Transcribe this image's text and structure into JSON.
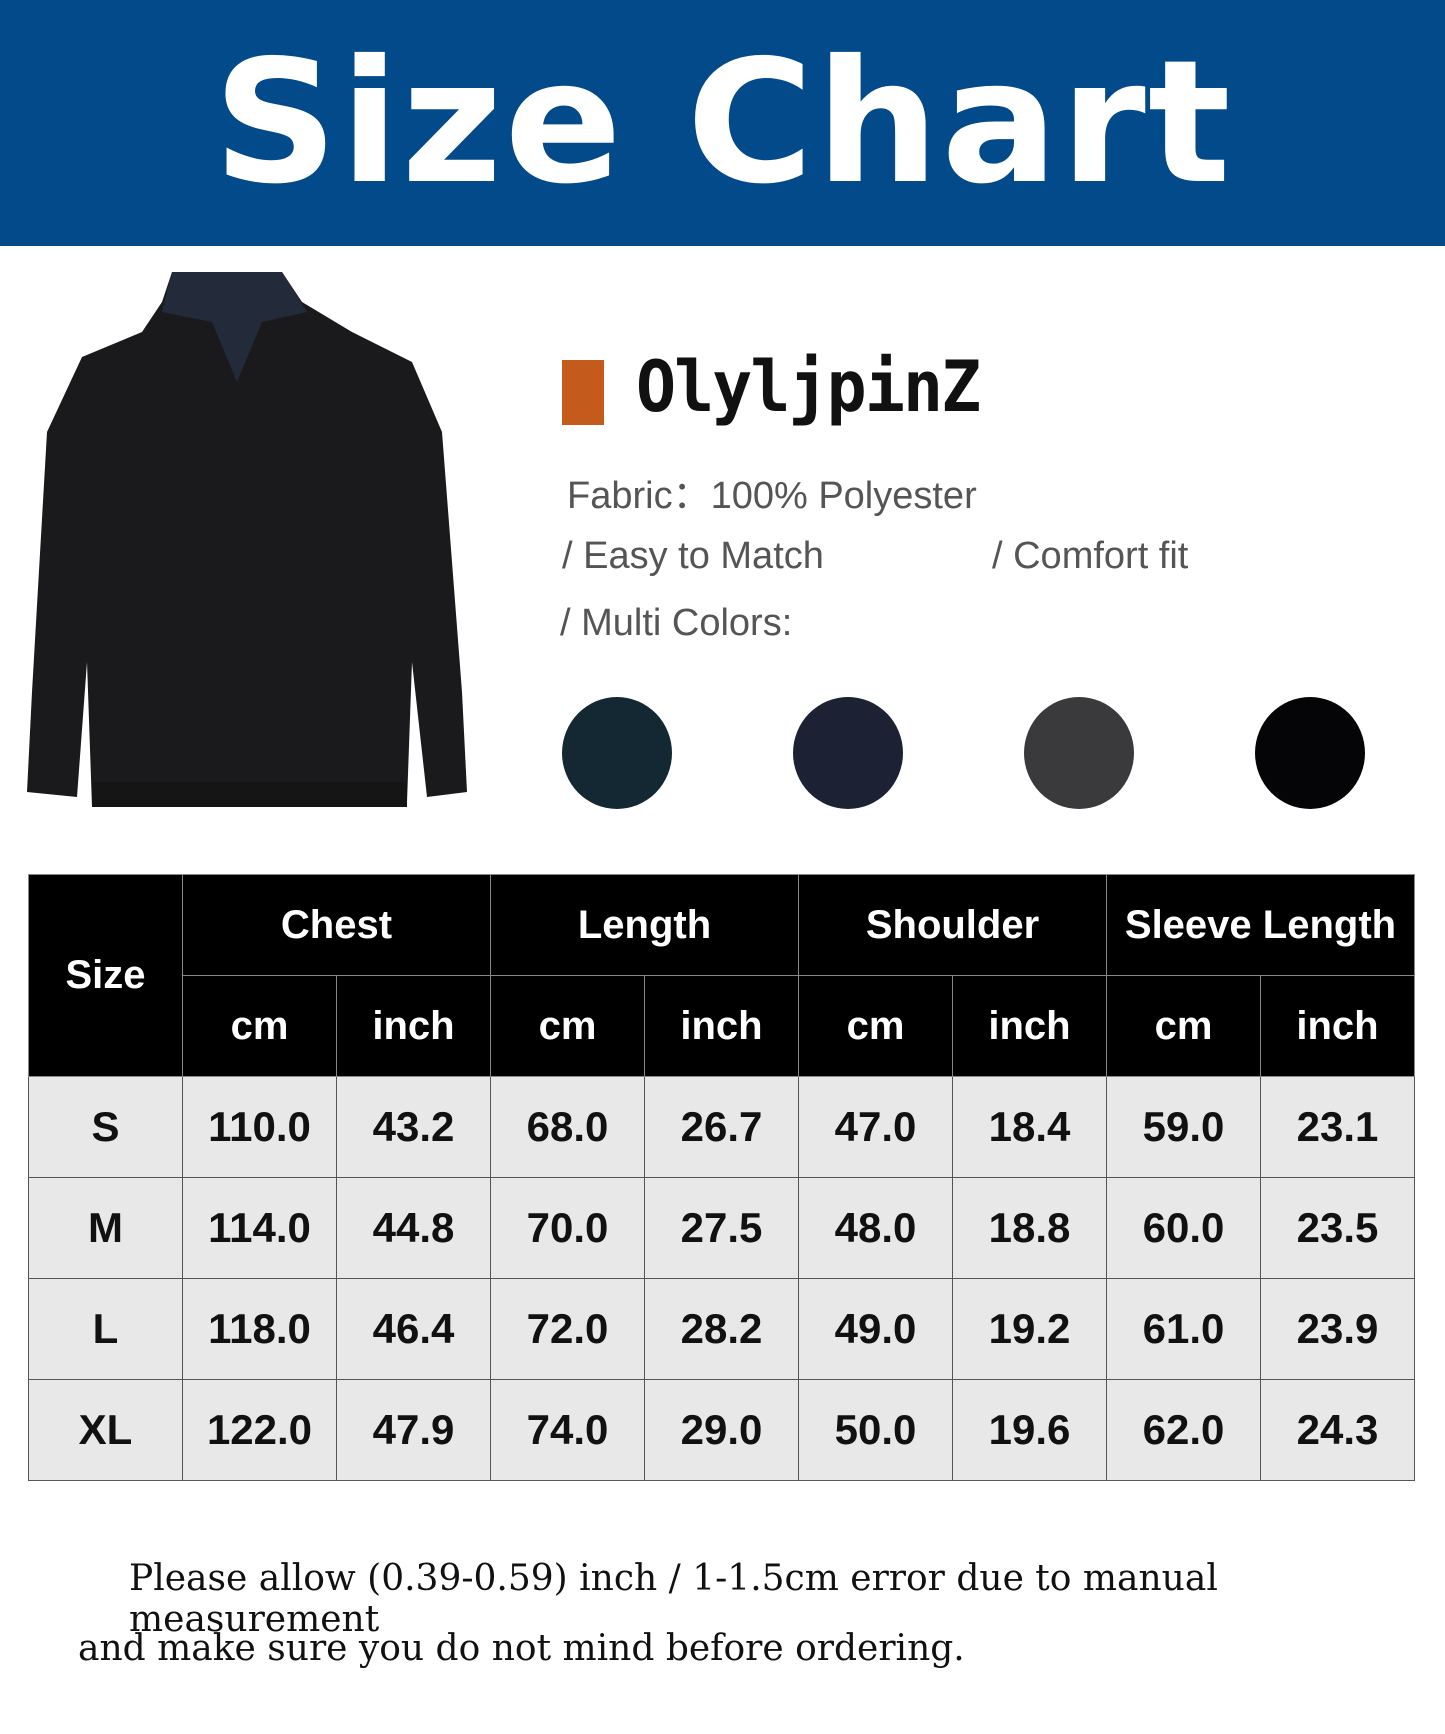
{
  "title": "Size Chart",
  "brand": {
    "name": "OlyljpinZ",
    "accent": "#c45a1c"
  },
  "features": {
    "fabric": "Fabric：100% Polyester",
    "easy": "/ Easy to Match",
    "comfort": "/ Comfort fit",
    "colors_label": "/ Multi Colors:"
  },
  "color_swatches": [
    "#132833",
    "#1c2233",
    "#3a3a3c",
    "#050507"
  ],
  "table": {
    "size_header": "Size",
    "groups": [
      "Chest",
      "Length",
      "Shoulder",
      "Sleeve Length"
    ],
    "units": [
      "cm",
      "inch",
      "cm",
      "inch",
      "cm",
      "inch",
      "cm",
      "inch"
    ],
    "rows": [
      [
        "S",
        "110.0",
        "43.2",
        "68.0",
        "26.7",
        "47.0",
        "18.4",
        "59.0",
        "23.1"
      ],
      [
        "M",
        "114.0",
        "44.8",
        "70.0",
        "27.5",
        "48.0",
        "18.8",
        "60.0",
        "23.5"
      ],
      [
        "L",
        "118.0",
        "46.4",
        "72.0",
        "28.2",
        "49.0",
        "19.2",
        "61.0",
        "23.9"
      ],
      [
        "XL",
        "122.0",
        "47.9",
        "74.0",
        "29.0",
        "50.0",
        "19.6",
        "62.0",
        "24.3"
      ]
    ]
  },
  "note": {
    "line1": "Please allow (0.39-0.59) inch / 1-1.5cm error due to manual measurement",
    "line2": "and make sure you do not mind before ordering."
  }
}
